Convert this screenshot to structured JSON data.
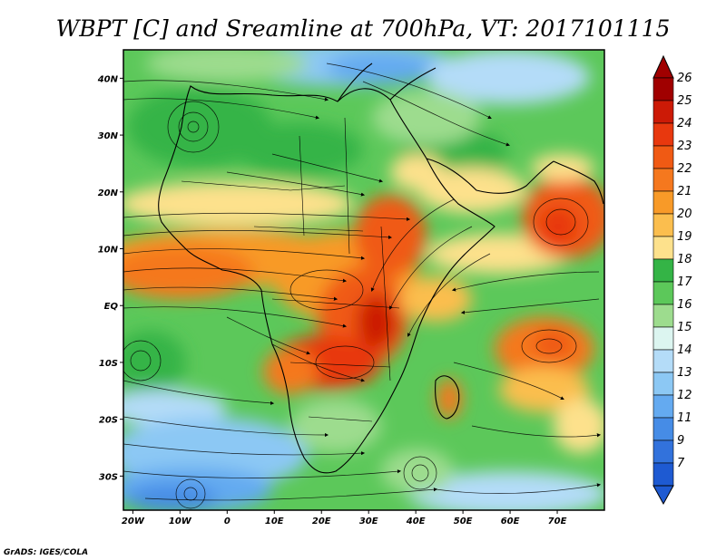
{
  "title": "WBPT [C] and Sreamline at 700hPa, VT: 2017101115",
  "credit": "GrADS: IGES/COLA",
  "map": {
    "lon_range": [
      -22,
      80
    ],
    "lat_range": [
      -36,
      45
    ],
    "lat_ticks": [
      {
        "value": 40,
        "label": "40N"
      },
      {
        "value": 30,
        "label": "30N"
      },
      {
        "value": 20,
        "label": "20N"
      },
      {
        "value": 10,
        "label": "10N"
      },
      {
        "value": 0,
        "label": "EQ"
      },
      {
        "value": -10,
        "label": "10S"
      },
      {
        "value": -20,
        "label": "20S"
      },
      {
        "value": -30,
        "label": "30S"
      }
    ],
    "lon_ticks": [
      {
        "value": -20,
        "label": "20W"
      },
      {
        "value": -10,
        "label": "10W"
      },
      {
        "value": 0,
        "label": "0"
      },
      {
        "value": 10,
        "label": "10E"
      },
      {
        "value": 20,
        "label": "20E"
      },
      {
        "value": 30,
        "label": "30E"
      },
      {
        "value": 40,
        "label": "40E"
      },
      {
        "value": 50,
        "label": "50E"
      },
      {
        "value": 60,
        "label": "60E"
      },
      {
        "value": 70,
        "label": "70E"
      }
    ]
  },
  "colorbar": {
    "levels": [
      {
        "label": "26",
        "color": "#a00000"
      },
      {
        "label": "25",
        "color": "#cc1a06"
      },
      {
        "label": "24",
        "color": "#e8380e"
      },
      {
        "label": "23",
        "color": "#f05a14"
      },
      {
        "label": "22",
        "color": "#f5781e"
      },
      {
        "label": "21",
        "color": "#f89a28"
      },
      {
        "label": "20",
        "color": "#fbbe4e"
      },
      {
        "label": "19",
        "color": "#fde18c"
      },
      {
        "label": "18",
        "color": "#34b446"
      },
      {
        "label": "17",
        "color": "#5cc85a"
      },
      {
        "label": "16",
        "color": "#9ddc8e"
      },
      {
        "label": "15",
        "color": "#dcf5f0"
      },
      {
        "label": "14",
        "color": "#b4dcf8"
      },
      {
        "label": "13",
        "color": "#8cc8f4"
      },
      {
        "label": "12",
        "color": "#64aaf0"
      },
      {
        "label": "11",
        "color": "#468ce6"
      },
      {
        "label": "9",
        "color": "#3272dc"
      },
      {
        "label": "7",
        "color": "#1e5ad2"
      }
    ],
    "top_arrow_color": "#a00000",
    "bottom_arrow_color": "#1e5ad2"
  }
}
